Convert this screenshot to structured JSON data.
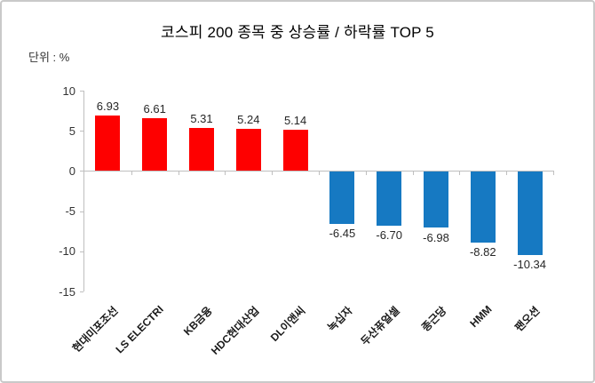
{
  "header": {
    "title": "코스피 200 종목 중  상승률 / 하락률 TOP 5",
    "unit_label": "단위 : %"
  },
  "chart_data": {
    "type": "bar",
    "title": "코스피 200 종목 중  상승률 / 하락률 TOP 5",
    "unit": "%",
    "categories": [
      "현대미포조선",
      "LS ELECTRI",
      "KB금융",
      "HDC현대산업",
      "DL이앤씨",
      "녹십자",
      "두산퓨얼셀",
      "종근당",
      "HMM",
      "팬오션"
    ],
    "values": [
      6.93,
      6.61,
      5.31,
      5.24,
      5.14,
      -6.45,
      -6.7,
      -6.98,
      -8.82,
      -10.34
    ],
    "value_labels": [
      "6.93",
      "6.61",
      "5.31",
      "5.24",
      "5.14",
      "-6.45",
      "-6.70",
      "-6.98",
      "-8.82",
      "-10.34"
    ],
    "ylim": [
      -15,
      10
    ],
    "yticks": [
      10,
      5,
      0,
      -5,
      -10,
      -15
    ],
    "grid": false,
    "legend": false,
    "xlabel": "",
    "ylabel": "단위 : %",
    "colors": {
      "positive_bar": "#fe0000",
      "negative_bar": "#1679c2",
      "axis_line": "#bfbfbf",
      "tick_label": "#333333",
      "value_label": "#262626",
      "title": "#000000"
    }
  }
}
